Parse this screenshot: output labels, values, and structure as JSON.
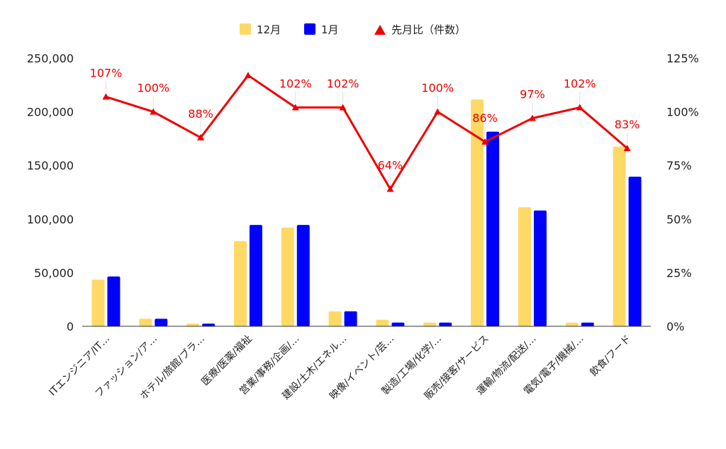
{
  "chart_data": {
    "type": "bar",
    "categories": [
      "ITエンジニア/IT…",
      "ファッション/ア…",
      "ホテル/旅館/ブラ…",
      "医療/医薬/福祉",
      "営業/事務/企画/…",
      "建設/土木/エネル…",
      "映像/イベント/芸…",
      "製造/工場/化学/…",
      "販売/接客/サービス",
      "運輸/物流/配送/…",
      "電気/電子/機械/…",
      "飲食/フード"
    ],
    "series": [
      {
        "name": "12月",
        "axis": "left",
        "type": "bar",
        "color": "#FFD966",
        "values": [
          43500,
          7000,
          2500,
          79500,
          92000,
          14000,
          6000,
          3500,
          211500,
          111000,
          3500,
          167500
        ]
      },
      {
        "name": "1月",
        "axis": "left",
        "type": "bar",
        "color": "#0000FF",
        "values": [
          46500,
          7000,
          2500,
          94500,
          94500,
          14000,
          3500,
          3500,
          181500,
          108000,
          3500,
          139500
        ]
      },
      {
        "name": "先月比（件数）",
        "axis": "right",
        "type": "line",
        "color": "#EE0000",
        "values": [
          107,
          100,
          88,
          117,
          102,
          102,
          64,
          100,
          86,
          97,
          102,
          83
        ],
        "labels": [
          "107%",
          "100%",
          "88%",
          "",
          "102%",
          "102%",
          "64%",
          "100%",
          "86%",
          "97%",
          "102%",
          "83%"
        ]
      }
    ],
    "y_left": {
      "min": 0,
      "max": 250000,
      "ticks": [
        "0",
        "50,000",
        "100,000",
        "150,000",
        "200,000",
        "250,000"
      ]
    },
    "y_right": {
      "min": 0,
      "max": 125,
      "ticks": [
        "0%",
        "25%",
        "50%",
        "75%",
        "100%",
        "125%"
      ]
    },
    "legend_position": "top-center",
    "grid": false
  }
}
